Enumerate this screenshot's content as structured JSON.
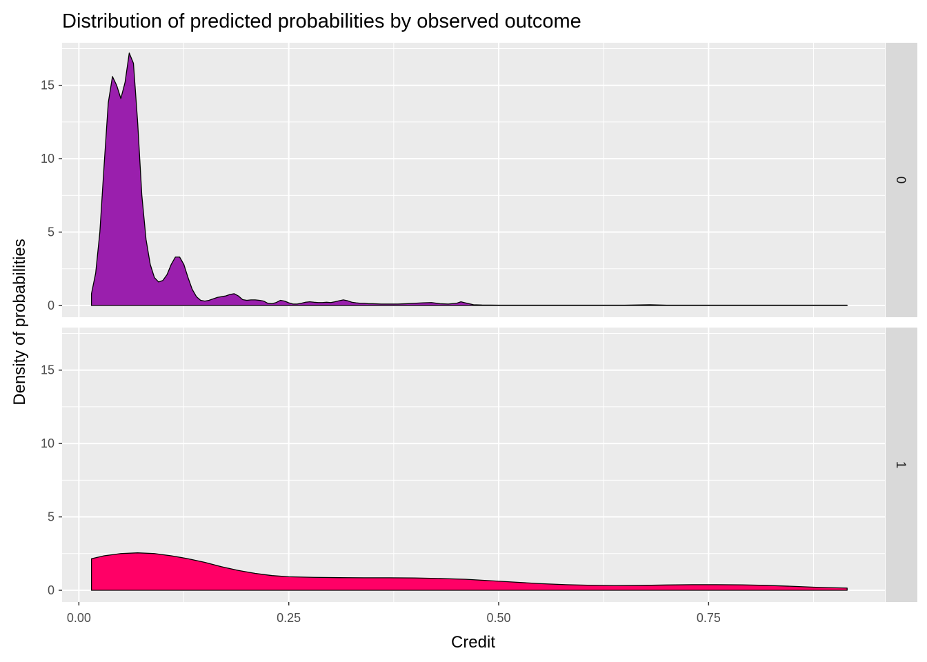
{
  "chart_data": {
    "type": "area",
    "title": "Distribution of predicted probabilities by observed outcome",
    "xlabel": "Credit",
    "ylabel": "Density of probabilities",
    "xlim": [
      -0.02,
      0.96
    ],
    "ylim": [
      -0.8,
      17.9
    ],
    "x_ticks": [
      0.0,
      0.25,
      0.5,
      0.75
    ],
    "x_tick_labels": [
      "0.00",
      "0.25",
      "0.50",
      "0.75"
    ],
    "y_ticks": [
      0,
      5,
      10,
      15
    ],
    "y_tick_labels": [
      "0",
      "5",
      "10",
      "15"
    ],
    "grid": true,
    "facet_variable": "observed outcome",
    "panels": [
      {
        "strip_label": "0",
        "fill": "#9a1fad",
        "x": [
          0.015,
          0.02,
          0.025,
          0.03,
          0.035,
          0.04,
          0.045,
          0.05,
          0.055,
          0.06,
          0.065,
          0.07,
          0.075,
          0.08,
          0.085,
          0.09,
          0.095,
          0.1,
          0.105,
          0.11,
          0.115,
          0.12,
          0.125,
          0.13,
          0.135,
          0.14,
          0.145,
          0.15,
          0.155,
          0.16,
          0.165,
          0.17,
          0.175,
          0.18,
          0.185,
          0.19,
          0.195,
          0.2,
          0.205,
          0.21,
          0.215,
          0.22,
          0.225,
          0.23,
          0.235,
          0.24,
          0.245,
          0.25,
          0.255,
          0.26,
          0.265,
          0.27,
          0.275,
          0.28,
          0.285,
          0.29,
          0.295,
          0.3,
          0.305,
          0.31,
          0.315,
          0.32,
          0.325,
          0.33,
          0.335,
          0.34,
          0.345,
          0.35,
          0.36,
          0.37,
          0.38,
          0.39,
          0.4,
          0.41,
          0.42,
          0.43,
          0.44,
          0.45,
          0.455,
          0.46,
          0.47,
          0.48,
          0.5,
          0.55,
          0.6,
          0.65,
          0.68,
          0.7,
          0.72,
          0.75,
          0.8,
          0.85,
          0.9,
          0.915
        ],
        "y": [
          0.8,
          2.2,
          5.0,
          9.5,
          13.8,
          15.6,
          15.0,
          14.1,
          15.2,
          17.2,
          16.5,
          12.5,
          7.5,
          4.5,
          2.8,
          1.9,
          1.6,
          1.7,
          2.1,
          2.8,
          3.3,
          3.3,
          2.8,
          1.9,
          1.1,
          0.6,
          0.35,
          0.3,
          0.35,
          0.45,
          0.55,
          0.6,
          0.65,
          0.75,
          0.8,
          0.65,
          0.4,
          0.35,
          0.38,
          0.38,
          0.35,
          0.3,
          0.15,
          0.12,
          0.2,
          0.35,
          0.3,
          0.18,
          0.1,
          0.1,
          0.15,
          0.22,
          0.25,
          0.22,
          0.2,
          0.2,
          0.22,
          0.2,
          0.25,
          0.32,
          0.38,
          0.32,
          0.22,
          0.18,
          0.15,
          0.15,
          0.12,
          0.12,
          0.1,
          0.1,
          0.1,
          0.12,
          0.15,
          0.18,
          0.2,
          0.12,
          0.1,
          0.15,
          0.25,
          0.18,
          0.05,
          0.03,
          0.02,
          0.02,
          0.02,
          0.02,
          0.05,
          0.02,
          0.02,
          0.02,
          0.02,
          0.02,
          0.02,
          0.02
        ]
      },
      {
        "strip_label": "1",
        "fill": "#ff0066",
        "x": [
          0.015,
          0.03,
          0.05,
          0.07,
          0.09,
          0.11,
          0.13,
          0.15,
          0.17,
          0.19,
          0.21,
          0.23,
          0.25,
          0.28,
          0.31,
          0.34,
          0.37,
          0.4,
          0.43,
          0.46,
          0.49,
          0.52,
          0.55,
          0.58,
          0.61,
          0.64,
          0.67,
          0.7,
          0.73,
          0.76,
          0.79,
          0.82,
          0.85,
          0.88,
          0.915
        ],
        "y": [
          2.15,
          2.35,
          2.5,
          2.55,
          2.5,
          2.35,
          2.15,
          1.9,
          1.6,
          1.35,
          1.15,
          1.0,
          0.92,
          0.88,
          0.86,
          0.85,
          0.85,
          0.84,
          0.8,
          0.75,
          0.65,
          0.55,
          0.45,
          0.38,
          0.34,
          0.32,
          0.33,
          0.36,
          0.38,
          0.38,
          0.37,
          0.33,
          0.27,
          0.2,
          0.15
        ]
      }
    ]
  }
}
